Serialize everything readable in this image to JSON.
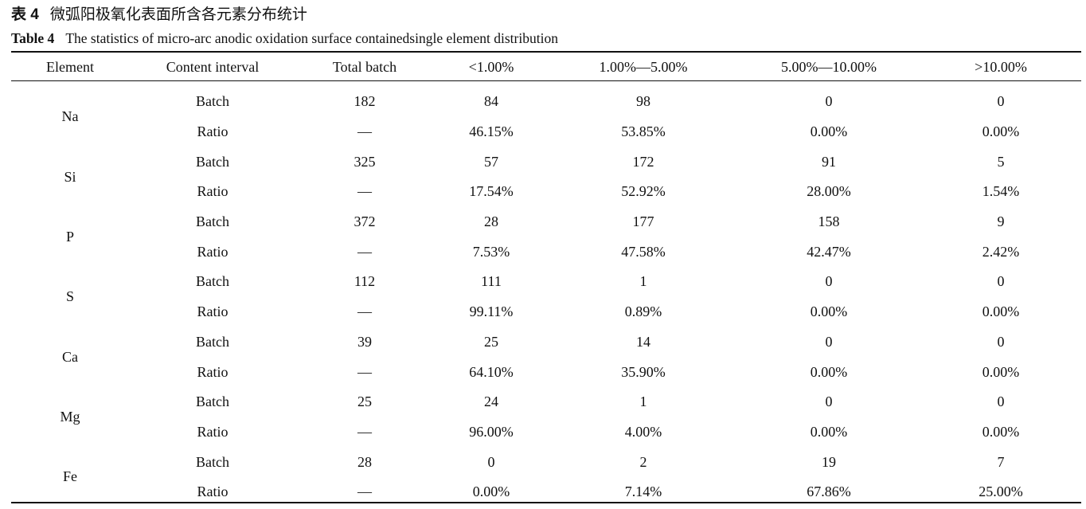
{
  "caption": {
    "cn_number": "表 4",
    "cn_title": "微弧阳极氧化表面所含各元素分布统计",
    "en_number": "Table 4",
    "en_title": "The statistics of micro-arc anodic oxidation surface containedsingle element distribution"
  },
  "table": {
    "columns": [
      "Element",
      "Content interval",
      "Total batch",
      "<1.00%",
      "1.00%—5.00%",
      "5.00%—10.00%",
      ">10.00%"
    ],
    "rows": [
      {
        "element": "Na",
        "batch": {
          "label": "Batch",
          "total": "182",
          "c1": "84",
          "c2": "98",
          "c3": "0",
          "c4": "0"
        },
        "ratio": {
          "label": "Ratio",
          "total": "—",
          "c1": "46.15%",
          "c2": "53.85%",
          "c3": "0.00%",
          "c4": "0.00%"
        }
      },
      {
        "element": "Si",
        "batch": {
          "label": "Batch",
          "total": "325",
          "c1": "57",
          "c2": "172",
          "c3": "91",
          "c4": "5"
        },
        "ratio": {
          "label": "Ratio",
          "total": "—",
          "c1": "17.54%",
          "c2": "52.92%",
          "c3": "28.00%",
          "c4": "1.54%"
        }
      },
      {
        "element": "P",
        "batch": {
          "label": "Batch",
          "total": "372",
          "c1": "28",
          "c2": "177",
          "c3": "158",
          "c4": "9"
        },
        "ratio": {
          "label": "Ratio",
          "total": "—",
          "c1": "7.53%",
          "c2": "47.58%",
          "c3": "42.47%",
          "c4": "2.42%"
        }
      },
      {
        "element": "S",
        "batch": {
          "label": "Batch",
          "total": "112",
          "c1": "111",
          "c2": "1",
          "c3": "0",
          "c4": "0"
        },
        "ratio": {
          "label": "Ratio",
          "total": "—",
          "c1": "99.11%",
          "c2": "0.89%",
          "c3": "0.00%",
          "c4": "0.00%"
        }
      },
      {
        "element": "Ca",
        "batch": {
          "label": "Batch",
          "total": "39",
          "c1": "25",
          "c2": "14",
          "c3": "0",
          "c4": "0"
        },
        "ratio": {
          "label": "Ratio",
          "total": "—",
          "c1": "64.10%",
          "c2": "35.90%",
          "c3": "0.00%",
          "c4": "0.00%"
        }
      },
      {
        "element": "Mg",
        "batch": {
          "label": "Batch",
          "total": "25",
          "c1": "24",
          "c2": "1",
          "c3": "0",
          "c4": "0"
        },
        "ratio": {
          "label": "Ratio",
          "total": "—",
          "c1": "96.00%",
          "c2": "4.00%",
          "c3": "0.00%",
          "c4": "0.00%"
        }
      },
      {
        "element": "Fe",
        "batch": {
          "label": "Batch",
          "total": "28",
          "c1": "0",
          "c2": "2",
          "c3": "19",
          "c4": "7"
        },
        "ratio": {
          "label": "Ratio",
          "total": "—",
          "c1": "0.00%",
          "c2": "7.14%",
          "c3": "67.86%",
          "c4": "25.00%"
        }
      }
    ]
  }
}
